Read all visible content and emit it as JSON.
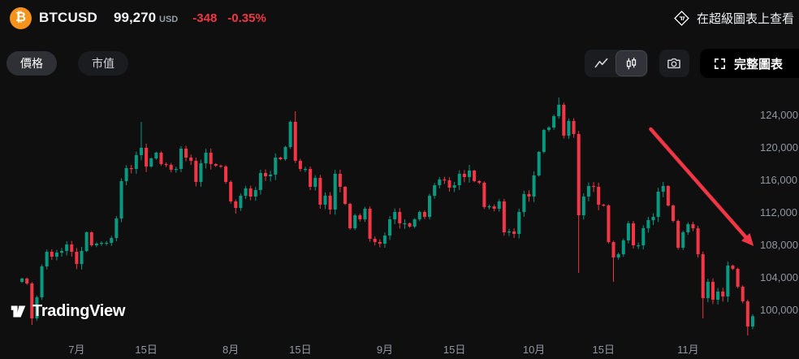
{
  "header": {
    "symbol": "BTCUSD",
    "price": "99,270",
    "currency_unit": "USD",
    "change_abs": "-348",
    "change_pct": "-0.35%",
    "supercharts_link_label": "在超級圖表上查看"
  },
  "toolbar": {
    "price_tab_label": "價格",
    "marketcap_tab_label": "市值",
    "full_chart_button_label": "完整圖表"
  },
  "watermark_label": "TradingView",
  "icons": {
    "bitcoin": "₿",
    "line_chart": "polyline-peak",
    "candlestick": "two-candles",
    "camera": "camera-outline",
    "fullscreen": "corner-brackets",
    "supercharts": "diamond-logo",
    "tradingview_logo": "tv-17-mark",
    "trend_arrow": "red-arrow-down-right"
  },
  "colors": {
    "background": "#0f0f0f",
    "accent_orange": "#f7931a",
    "negative": "#f23645",
    "candle_up": "#089981",
    "candle_down": "#f23645"
  },
  "chart_data": {
    "type": "candlestick",
    "symbol": "BTCUSD",
    "interval": "1D",
    "currency": "USD",
    "y_axis_side": "right",
    "grid": false,
    "y_min": 96400,
    "y_max": 127600,
    "y_ticks": [
      124000,
      120000,
      116000,
      112000,
      108000,
      104000,
      100000
    ],
    "y_tick_labels": [
      "124,000",
      "120,000",
      "116,000",
      "112,000",
      "108,000",
      "104,000",
      "100,000"
    ],
    "x_ticks": [
      {
        "label": "7月",
        "index": 11
      },
      {
        "label": "15日",
        "index": 25
      },
      {
        "label": "8月",
        "index": 42
      },
      {
        "label": "15日",
        "index": 56
      },
      {
        "label": "9月",
        "index": 73
      },
      {
        "label": "15日",
        "index": 87
      },
      {
        "label": "10月",
        "index": 103
      },
      {
        "label": "15日",
        "index": 117
      },
      {
        "label": "11月",
        "index": 134
      }
    ],
    "first_open": 103500,
    "closes": [
      103900,
      103300,
      99000,
      101600,
      105400,
      107200,
      106600,
      107100,
      107300,
      108100,
      107200,
      105700,
      107300,
      109600,
      108000,
      108200,
      108300,
      108300,
      108900,
      111300,
      115900,
      117500,
      117400,
      119100,
      120000,
      117700,
      118700,
      119400,
      118000,
      117900,
      117300,
      117400,
      119900,
      118800,
      118400,
      115800,
      118100,
      119400,
      118000,
      117800,
      117700,
      115800,
      113400,
      112600,
      114100,
      115000,
      114000,
      114800,
      116900,
      116500,
      116700,
      118800,
      118600,
      120100,
      123200,
      118400,
      117400,
      117400,
      115200,
      116300,
      113000,
      114100,
      112400,
      116800,
      115200,
      113100,
      110100,
      111700,
      111200,
      112500,
      108800,
      108400,
      108200,
      109200,
      111200,
      112100,
      110700,
      110700,
      110300,
      111200,
      112100,
      111500,
      114100,
      115400,
      116100,
      116000,
      115100,
      115400,
      116800,
      116400,
      117200,
      115900,
      115700,
      112700,
      112800,
      112500,
      113400,
      109600,
      109700,
      109400,
      112100,
      114300,
      114000,
      116600,
      119500,
      122200,
      122500,
      123900,
      125300,
      121500,
      123300,
      121700,
      111700,
      114000,
      115300,
      115200,
      113000,
      112900,
      108400,
      106500,
      106900,
      108600,
      110700,
      108000,
      108000,
      110100,
      111100,
      111500,
      114600,
      115300,
      112900,
      111000,
      107700,
      109600,
      110600,
      110100,
      106900,
      101500,
      103500,
      101300,
      102300,
      101700,
      105500,
      105100,
      102900,
      101100,
      98000,
      99270
    ],
    "wick_extremes": {
      "2": {
        "low": 98200
      },
      "24": {
        "high": 123200
      },
      "43": {
        "low": 111900
      },
      "55": {
        "high": 124500
      },
      "90": {
        "high": 117900
      },
      "108": {
        "high": 126200
      },
      "112": {
        "low": 104600
      },
      "119": {
        "low": 103500
      },
      "137": {
        "low": 99000
      },
      "146": {
        "low": 96900
      }
    },
    "colors": {
      "up": "#089981",
      "down": "#f23645"
    },
    "annotation_arrow": {
      "from_index": 126.5,
      "from_price": 122300,
      "to_index": 147.2,
      "to_price": 107900,
      "color": "#f23645"
    }
  }
}
